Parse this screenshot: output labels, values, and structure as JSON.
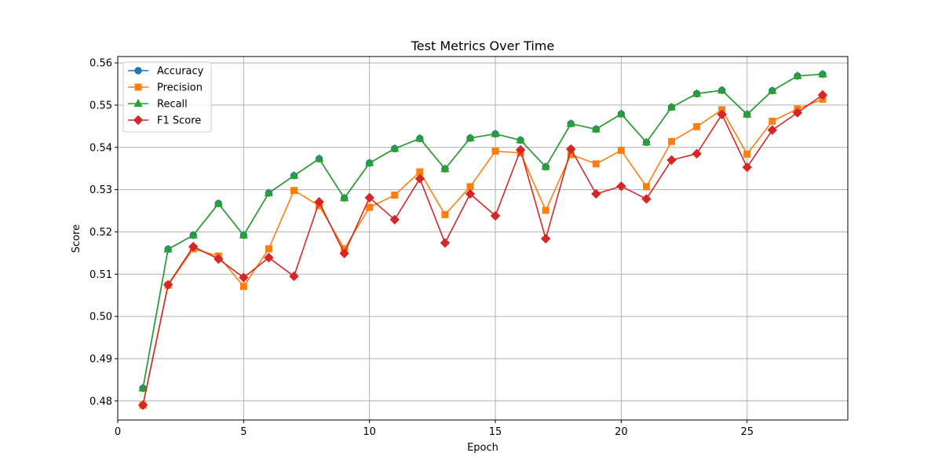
{
  "chart_data": {
    "type": "line",
    "title": "Test Metrics Over Time",
    "xlabel": "Epoch",
    "ylabel": "Score",
    "xlim": [
      0,
      29
    ],
    "ylim": [
      0.4755,
      0.5615
    ],
    "xticks": [
      0,
      5,
      10,
      15,
      20,
      25
    ],
    "xtick_labels": [
      "0",
      "5",
      "10",
      "15",
      "20",
      "25"
    ],
    "yticks": [
      0.48,
      0.49,
      0.5,
      0.51,
      0.52,
      0.53,
      0.54,
      0.55,
      0.56
    ],
    "ytick_labels": [
      "0.48",
      "0.49",
      "0.50",
      "0.51",
      "0.52",
      "0.53",
      "0.54",
      "0.55",
      "0.56"
    ],
    "grid": true,
    "legend_position": "top-left",
    "x": [
      1,
      2,
      3,
      4,
      5,
      6,
      7,
      8,
      9,
      10,
      11,
      12,
      13,
      14,
      15,
      16,
      17,
      18,
      19,
      20,
      21,
      22,
      23,
      24,
      25,
      26,
      27,
      28
    ],
    "series": [
      {
        "name": "Accuracy",
        "color": "#1f77b4",
        "marker": "circle",
        "values": [
          0.483,
          0.5159,
          0.5192,
          0.5267,
          0.5192,
          0.5292,
          0.5333,
          0.5373,
          0.528,
          0.5363,
          0.5397,
          0.5421,
          0.5349,
          0.5422,
          0.5432,
          0.5417,
          0.5354,
          0.5456,
          0.5443,
          0.5479,
          0.5412,
          0.5495,
          0.5527,
          0.5535,
          0.5478,
          0.5534,
          0.5569,
          0.5573
        ]
      },
      {
        "name": "Precision",
        "color": "#ff7f0e",
        "marker": "square",
        "values": [
          0.479,
          0.5074,
          0.516,
          0.5143,
          0.5071,
          0.516,
          0.5298,
          0.5262,
          0.516,
          0.5258,
          0.5287,
          0.5342,
          0.5241,
          0.5307,
          0.5391,
          0.5387,
          0.5251,
          0.5383,
          0.5361,
          0.5393,
          0.5307,
          0.5414,
          0.5449,
          0.5489,
          0.5384,
          0.5462,
          0.5491,
          0.5514
        ]
      },
      {
        "name": "Recall",
        "color": "#2ca02c",
        "marker": "triangle",
        "values": [
          0.483,
          0.5159,
          0.5192,
          0.5267,
          0.5192,
          0.5292,
          0.5333,
          0.5373,
          0.528,
          0.5363,
          0.5397,
          0.5421,
          0.5349,
          0.5422,
          0.5432,
          0.5417,
          0.5354,
          0.5456,
          0.5443,
          0.5479,
          0.5412,
          0.5495,
          0.5527,
          0.5535,
          0.5478,
          0.5534,
          0.5569,
          0.5573
        ]
      },
      {
        "name": "F1 Score",
        "color": "#d62728",
        "marker": "diamond",
        "values": [
          0.479,
          0.5075,
          0.5165,
          0.5136,
          0.5092,
          0.5139,
          0.5095,
          0.5271,
          0.5149,
          0.5281,
          0.5229,
          0.5326,
          0.5174,
          0.529,
          0.5238,
          0.5394,
          0.5184,
          0.5396,
          0.529,
          0.5308,
          0.5278,
          0.537,
          0.5385,
          0.5478,
          0.5353,
          0.5441,
          0.5482,
          0.5524
        ]
      }
    ]
  }
}
